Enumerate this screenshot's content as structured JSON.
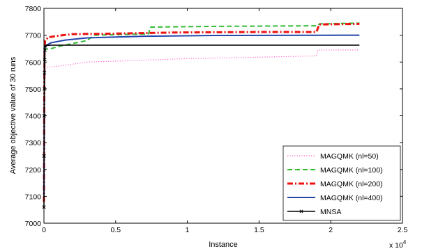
{
  "chart_data": {
    "type": "line",
    "title": "",
    "xlabel": "Instance",
    "ylabel": "Average objective value of 30 runs",
    "x_multiplier": "x 10",
    "x_multiplier_exp": "4",
    "xlim": [
      0,
      2.5
    ],
    "ylim": [
      7000,
      7800
    ],
    "xticks": [
      "0",
      "0.5",
      "1",
      "1.5",
      "2",
      "2.5"
    ],
    "yticks": [
      "7000",
      "7100",
      "7200",
      "7300",
      "7400",
      "7500",
      "7600",
      "7700",
      "7800"
    ],
    "grid": false,
    "legend_position": "bottom-right",
    "series": [
      {
        "name": "MAGQMK (nl=50)",
        "color": "#ff66cc",
        "style": "dotted",
        "points": [
          [
            0.0,
            7080
          ],
          [
            0.002,
            7300
          ],
          [
            0.004,
            7480
          ],
          [
            0.008,
            7570
          ],
          [
            0.02,
            7580
          ],
          [
            0.1,
            7585
          ],
          [
            0.2,
            7592
          ],
          [
            0.3,
            7600
          ],
          [
            0.6,
            7605
          ],
          [
            1.0,
            7613
          ],
          [
            1.5,
            7618
          ],
          [
            1.9,
            7623
          ],
          [
            1.91,
            7645
          ],
          [
            2.2,
            7645
          ]
        ]
      },
      {
        "name": "MAGQMK (nl=100)",
        "color": "#33bb33",
        "style": "dashed",
        "points": [
          [
            0.0,
            7100
          ],
          [
            0.002,
            7400
          ],
          [
            0.004,
            7600
          ],
          [
            0.008,
            7648
          ],
          [
            0.05,
            7650
          ],
          [
            0.1,
            7658
          ],
          [
            0.3,
            7680
          ],
          [
            0.35,
            7700
          ],
          [
            0.73,
            7705
          ],
          [
            0.74,
            7730
          ],
          [
            1.2,
            7733
          ],
          [
            1.91,
            7735
          ],
          [
            1.92,
            7742
          ],
          [
            2.2,
            7745
          ]
        ]
      },
      {
        "name": "MAGQMK (nl=200)",
        "color": "#ee1111",
        "style": "dashdot",
        "points": [
          [
            0.0,
            7080
          ],
          [
            0.002,
            7450
          ],
          [
            0.004,
            7640
          ],
          [
            0.008,
            7680
          ],
          [
            0.03,
            7692
          ],
          [
            0.1,
            7698
          ],
          [
            0.2,
            7704
          ],
          [
            0.5,
            7706
          ],
          [
            0.9,
            7710
          ],
          [
            1.5,
            7712
          ],
          [
            1.9,
            7712
          ],
          [
            1.92,
            7740
          ],
          [
            2.2,
            7742
          ]
        ]
      },
      {
        "name": "MAGQMK (nl=400)",
        "color": "#2244aa",
        "style": "solid",
        "points": [
          [
            0.0,
            7100
          ],
          [
            0.002,
            7450
          ],
          [
            0.004,
            7630
          ],
          [
            0.008,
            7660
          ],
          [
            0.05,
            7672
          ],
          [
            0.15,
            7682
          ],
          [
            0.3,
            7690
          ],
          [
            0.7,
            7696
          ],
          [
            1.2,
            7699
          ],
          [
            2.2,
            7700
          ]
        ]
      },
      {
        "name": "MNSA",
        "color": "#000000",
        "style": "solid-x",
        "points": [
          [
            0.0,
            7060
          ],
          [
            0.001,
            7250
          ],
          [
            0.002,
            7400
          ],
          [
            0.003,
            7500
          ],
          [
            0.004,
            7560
          ],
          [
            0.005,
            7610
          ],
          [
            0.007,
            7645
          ],
          [
            0.01,
            7660
          ],
          [
            0.02,
            7662
          ],
          [
            0.05,
            7663
          ],
          [
            2.2,
            7663
          ]
        ]
      }
    ]
  }
}
